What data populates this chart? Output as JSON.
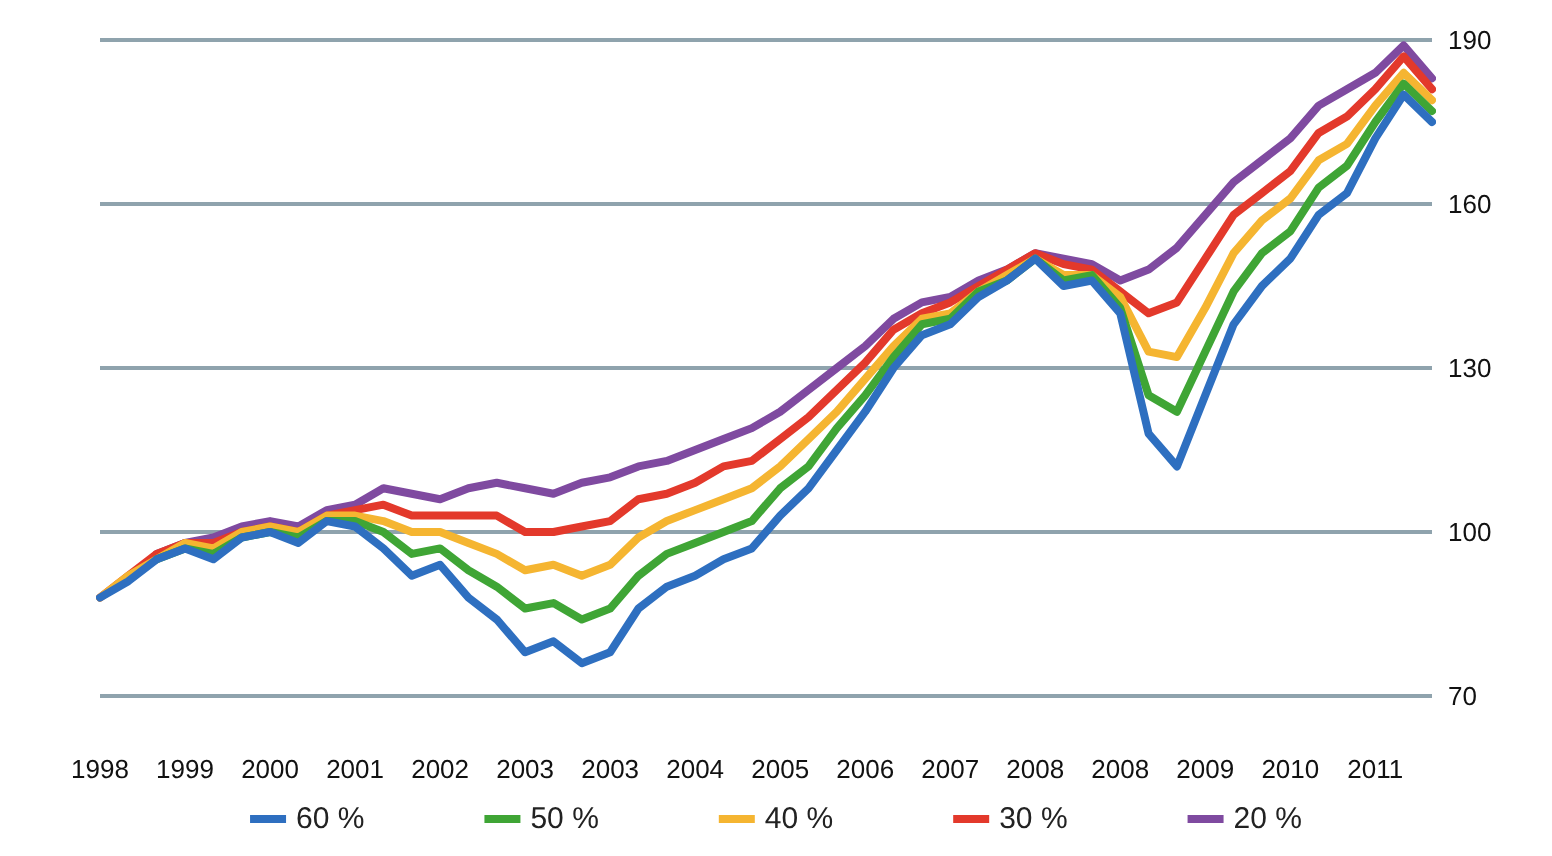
{
  "chart_data": {
    "type": "line",
    "categories": [
      "1998",
      null,
      null,
      "1999",
      null,
      null,
      "2000",
      null,
      null,
      "2001",
      null,
      null,
      "2002",
      null,
      null,
      "2003",
      null,
      null,
      "2003",
      null,
      null,
      "2004",
      null,
      null,
      "2005",
      null,
      null,
      "2006",
      null,
      null,
      "2007",
      null,
      null,
      "2008",
      null,
      null,
      "2008",
      null,
      null,
      "2009",
      null,
      null,
      "2010",
      null,
      null,
      "2011",
      null,
      null
    ],
    "series": [
      {
        "name": "60 %",
        "color": "#2e6fc0",
        "values": [
          88,
          91,
          95,
          97,
          95,
          99,
          100,
          98,
          102,
          101,
          97,
          92,
          94,
          88,
          84,
          78,
          80,
          76,
          78,
          86,
          90,
          92,
          95,
          97,
          103,
          108,
          115,
          122,
          130,
          136,
          138,
          143,
          146,
          150,
          145,
          146,
          140,
          118,
          112,
          125,
          138,
          145,
          150,
          158,
          162,
          172,
          180,
          175
        ]
      },
      {
        "name": "50 %",
        "color": "#3fa535",
        "values": [
          null,
          null,
          95,
          97,
          96,
          99,
          100,
          99,
          102,
          102,
          100,
          96,
          97,
          93,
          90,
          86,
          87,
          84,
          86,
          92,
          96,
          98,
          100,
          102,
          108,
          112,
          119,
          125,
          132,
          138,
          139,
          144,
          146,
          150,
          146,
          147,
          141,
          125,
          122,
          133,
          144,
          151,
          155,
          163,
          167,
          175,
          182,
          177
        ]
      },
      {
        "name": "40 %",
        "color": "#f5b531",
        "values": [
          88,
          92,
          95,
          98,
          97,
          100,
          101,
          100,
          103,
          103,
          102,
          100,
          100,
          98,
          96,
          93,
          94,
          92,
          94,
          99,
          102,
          104,
          106,
          108,
          112,
          117,
          122,
          128,
          134,
          139,
          140,
          144,
          147,
          150,
          147,
          147,
          143,
          133,
          132,
          141,
          151,
          157,
          161,
          168,
          171,
          178,
          184,
          179
        ]
      },
      {
        "name": "30 %",
        "color": "#e3392b",
        "values": [
          88,
          92,
          96,
          98,
          98,
          100,
          101,
          100,
          103,
          104,
          105,
          103,
          103,
          103,
          103,
          100,
          100,
          101,
          102,
          106,
          107,
          109,
          112,
          113,
          117,
          121,
          126,
          131,
          137,
          140,
          142,
          145,
          148,
          151,
          149,
          148,
          144,
          140,
          142,
          150,
          158,
          162,
          166,
          173,
          176,
          181,
          187,
          181
        ]
      },
      {
        "name": "20 %",
        "color": "#7f4aa0",
        "values": [
          null,
          null,
          96,
          98,
          99,
          101,
          102,
          101,
          104,
          105,
          108,
          107,
          106,
          108,
          109,
          108,
          107,
          109,
          110,
          112,
          113,
          115,
          117,
          119,
          122,
          126,
          130,
          134,
          139,
          142,
          143,
          146,
          148,
          151,
          150,
          149,
          146,
          148,
          152,
          158,
          164,
          168,
          172,
          178,
          181,
          184,
          189,
          183
        ]
      }
    ],
    "ylim": [
      70,
      190
    ],
    "yticks": [
      70,
      100,
      130,
      160,
      190
    ],
    "grid": "y",
    "legend": "bottom",
    "marker": "none",
    "line_style": "solid"
  }
}
